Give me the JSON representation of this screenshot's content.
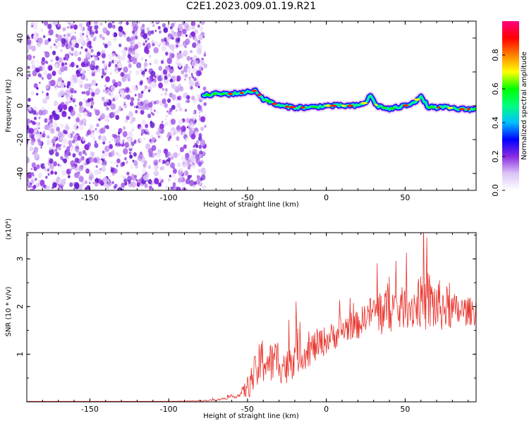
{
  "title": "C2E1.2023.009.01.19.R21",
  "chart_data": [
    {
      "type": "heatmap",
      "title": "",
      "xlabel": "Height of straight line (km)",
      "ylabel": "Frequency (Hz)",
      "xlim": [
        -190,
        95
      ],
      "ylim": [
        -50,
        50
      ],
      "xticks": [
        -150,
        -100,
        -50,
        0,
        50
      ],
      "yticks": [
        -40,
        -20,
        0,
        20,
        40
      ],
      "noise_region_x": [
        -190,
        -78
      ],
      "signal_center_line": {
        "x": [
          -78,
          -70,
          -60,
          -50,
          -45,
          -40,
          -35,
          -30,
          -20,
          -10,
          0,
          10,
          20,
          25,
          28,
          32,
          40,
          50,
          55,
          60,
          65,
          75,
          85,
          95
        ],
        "y": [
          6,
          7,
          7,
          8,
          9,
          4,
          2,
          0,
          -1,
          -1,
          0,
          0,
          0,
          2,
          6,
          0,
          -2,
          0,
          2,
          5,
          -1,
          -1,
          -2,
          -2
        ]
      },
      "colorbar": {
        "label": "Normalized spectral amplitude",
        "range": [
          0,
          1
        ],
        "ticks": [
          "0.0",
          "0.2",
          "0.4",
          "0.6",
          "0.8"
        ],
        "colors": [
          "#ffffff",
          "#dcc4f6",
          "#8a2be2",
          "#0000ff",
          "#00bfff",
          "#00ff80",
          "#00ff00",
          "#ffff00",
          "#ff8000",
          "#ff0000",
          "#ff0080"
        ]
      }
    },
    {
      "type": "line",
      "title": "",
      "xlabel": "Height of straight line (km)",
      "ylabel": "SNR (10 * v/v)",
      "yscale_note": "(x10⁴)",
      "xlim": [
        -190,
        95
      ],
      "ylim": [
        0,
        3.55
      ],
      "xticks": [
        -150,
        -100,
        -50,
        0,
        50
      ],
      "yticks": [
        1,
        2,
        3
      ],
      "series": [
        {
          "color": "#e8312a",
          "x": [
            -190,
            -150,
            -100,
            -80,
            -70,
            -60,
            -55,
            -50,
            -45,
            -40,
            -35,
            -30,
            -25,
            -20,
            -15,
            -10,
            -5,
            0,
            5,
            10,
            15,
            20,
            25,
            30,
            35,
            40,
            45,
            50,
            55,
            60,
            65,
            70,
            75,
            80,
            85,
            90,
            95
          ],
          "y": [
            0.01,
            0.01,
            0.01,
            0.02,
            0.04,
            0.1,
            0.14,
            0.3,
            0.6,
            0.9,
            0.8,
            0.9,
            0.7,
            1.1,
            1.0,
            1.1,
            1.2,
            1.3,
            1.4,
            1.5,
            1.6,
            1.6,
            1.8,
            1.9,
            1.9,
            2.0,
            1.9,
            2.0,
            2.0,
            2.1,
            2.1,
            2.0,
            2.0,
            1.9,
            1.9,
            1.9,
            1.9
          ],
          "spread": [
            0,
            0,
            0,
            0.01,
            0.02,
            0.03,
            0.05,
            0.25,
            0.4,
            0.55,
            0.45,
            0.5,
            0.4,
            0.55,
            0.35,
            0.35,
            0.35,
            0.3,
            0.3,
            0.35,
            0.3,
            0.3,
            0.3,
            0.4,
            0.55,
            0.55,
            0.45,
            0.45,
            0.5,
            0.55,
            0.7,
            0.6,
            0.5,
            0.4,
            0.35,
            0.3,
            0.3
          ]
        }
      ]
    }
  ]
}
